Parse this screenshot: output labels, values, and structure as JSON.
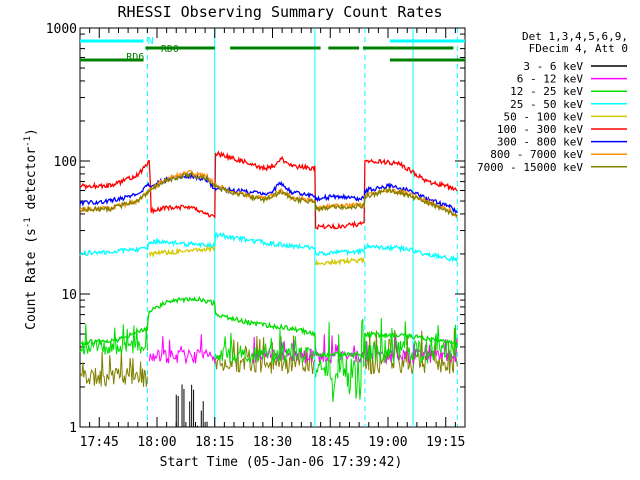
{
  "chart_data": {
    "type": "line",
    "title": "RHESSI Observing Summary Count Rates",
    "xlabel": "Start Time (05-Jan-06 17:39:42)",
    "ylabel_main": "Count Rate (s",
    "ylabel_sup1": "-1",
    "ylabel_mid": " detector",
    "ylabel_sup2": "-1",
    "ylabel_end": ")",
    "y_scale": "log",
    "ylim": [
      1,
      1000
    ],
    "xlim_min": [
      0,
      100
    ],
    "x_ticks": [
      {
        "label": "17:45",
        "t": 5
      },
      {
        "label": "18:00",
        "t": 20
      },
      {
        "label": "18:15",
        "t": 35
      },
      {
        "label": "18:30",
        "t": 50
      },
      {
        "label": "18:45",
        "t": 65
      },
      {
        "label": "19:00",
        "t": 80
      },
      {
        "label": "19:15",
        "t": 95
      }
    ],
    "y_ticks": [
      {
        "label": "1",
        "v": 1
      },
      {
        "label": "10",
        "v": 10
      },
      {
        "label": "100",
        "v": 100
      },
      {
        "label": "1000",
        "v": 1000
      }
    ],
    "header_lines": [
      "Det 1,3,4,5,6,9,",
      "FDecim 4, Att 0"
    ],
    "legend": [
      {
        "label": "3 - 6 keV",
        "color": "#000000"
      },
      {
        "label": "6 - 12 keV",
        "color": "#ff00ff"
      },
      {
        "label": "12 - 25 keV",
        "color": "#00dd00"
      },
      {
        "label": "25 - 50 keV",
        "color": "#00ffff"
      },
      {
        "label": "50 - 100 keV",
        "color": "#d4c800"
      },
      {
        "label": "100 - 300 keV",
        "color": "#ff0000"
      },
      {
        "label": "300 - 800 keV",
        "color": "#0000ff"
      },
      {
        "label": "800 - 7000 keV",
        "color": "#ff8c00"
      },
      {
        "label": "7000 - 15000 keV",
        "color": "#808000"
      }
    ],
    "flag_labels": {
      "n": "N",
      "rd0": "RD0",
      "rd6": "RD6"
    },
    "flags": {
      "n": [
        [
          0,
          16.5
        ],
        [
          80.5,
          100
        ]
      ],
      "rd0": [
        [
          17,
          35
        ],
        [
          39,
          62.5
        ],
        [
          64.5,
          72.5
        ],
        [
          73.5,
          97
        ]
      ],
      "rd6": [
        [
          0,
          16.5
        ],
        [
          80.5,
          100
        ]
      ]
    },
    "night_boundaries": [
      17.5,
      35,
      61,
      74,
      86.5,
      98
    ],
    "dashed_boundaries": [
      17.5,
      74,
      98
    ],
    "series": [
      {
        "name": "100 - 300 keV",
        "color": "#ff0000",
        "points": [
          [
            0,
            65
          ],
          [
            8,
            65
          ],
          [
            15,
            78
          ],
          [
            17.5,
            95
          ],
          [
            18,
            100
          ],
          [
            18.5,
            42
          ],
          [
            23,
            45
          ],
          [
            28,
            45
          ],
          [
            33,
            40
          ],
          [
            35,
            38
          ],
          [
            35.2,
            115
          ],
          [
            42,
            100
          ],
          [
            48,
            88
          ],
          [
            50,
            90
          ],
          [
            52,
            105
          ],
          [
            55,
            92
          ],
          [
            60,
            88
          ],
          [
            61,
            90
          ],
          [
            61.2,
            32
          ],
          [
            66,
            32
          ],
          [
            73.8,
            34
          ],
          [
            74,
            100
          ],
          [
            80,
            98
          ],
          [
            83,
            95
          ],
          [
            90,
            70
          ],
          [
            96,
            64
          ],
          [
            98,
            60
          ]
        ]
      },
      {
        "name": "300 - 800 keV",
        "color": "#0000ff",
        "points": [
          [
            0,
            48
          ],
          [
            8,
            50
          ],
          [
            15,
            56
          ],
          [
            17.5,
            65
          ],
          [
            18,
            65
          ],
          [
            22,
            72
          ],
          [
            28,
            78
          ],
          [
            33,
            72
          ],
          [
            35,
            62
          ],
          [
            40,
            60
          ],
          [
            48,
            57
          ],
          [
            50,
            60
          ],
          [
            52,
            68
          ],
          [
            55,
            58
          ],
          [
            61,
            55
          ],
          [
            61.2,
            52
          ],
          [
            66,
            54
          ],
          [
            73.8,
            52
          ],
          [
            74,
            60
          ],
          [
            80,
            65
          ],
          [
            84,
            62
          ],
          [
            90,
            52
          ],
          [
            96,
            45
          ],
          [
            98,
            42
          ]
        ]
      },
      {
        "name": "800 - 7000 keV",
        "color": "#ff8c00",
        "points": [
          [
            0,
            43
          ],
          [
            8,
            44
          ],
          [
            15,
            50
          ],
          [
            17.5,
            58
          ],
          [
            18,
            60
          ],
          [
            22,
            72
          ],
          [
            28,
            82
          ],
          [
            33,
            76
          ],
          [
            35,
            66
          ],
          [
            40,
            58
          ],
          [
            48,
            52
          ],
          [
            50,
            55
          ],
          [
            52,
            60
          ],
          [
            55,
            53
          ],
          [
            61,
            50
          ],
          [
            61.2,
            44
          ],
          [
            66,
            46
          ],
          [
            73.8,
            47
          ],
          [
            74,
            55
          ],
          [
            80,
            60
          ],
          [
            84,
            58
          ],
          [
            90,
            50
          ],
          [
            96,
            42
          ],
          [
            98,
            39
          ]
        ]
      },
      {
        "name": "7000 - 15000 keV",
        "color": "#808000",
        "points": [
          [
            0,
            43
          ],
          [
            8,
            44
          ],
          [
            15,
            50
          ],
          [
            17.5,
            58
          ],
          [
            18,
            60
          ],
          [
            22,
            70
          ],
          [
            28,
            80
          ],
          [
            33,
            74
          ],
          [
            35,
            65
          ],
          [
            40,
            57
          ],
          [
            48,
            51
          ],
          [
            50,
            54
          ],
          [
            52,
            59
          ],
          [
            55,
            52
          ],
          [
            61,
            49
          ],
          [
            61.2,
            44
          ],
          [
            66,
            45
          ],
          [
            73.8,
            46
          ],
          [
            74,
            54
          ],
          [
            80,
            60
          ],
          [
            84,
            57
          ],
          [
            90,
            49
          ],
          [
            96,
            41
          ],
          [
            98,
            38
          ]
        ]
      },
      {
        "name": "25 - 50 keV",
        "color": "#00ffff",
        "points": [
          [
            0,
            20
          ],
          [
            17.5,
            22
          ],
          [
            18,
            25
          ],
          [
            35,
            23
          ],
          [
            35.2,
            28
          ],
          [
            45,
            25
          ],
          [
            55,
            23
          ],
          [
            61,
            22
          ],
          [
            61.2,
            20
          ],
          [
            73.8,
            21
          ],
          [
            74,
            23
          ],
          [
            84,
            22
          ],
          [
            90,
            20
          ],
          [
            98,
            18
          ]
        ]
      },
      {
        "name": "50 - 100 keV",
        "color": "#d4c800",
        "points": [
          [
            18,
            20
          ],
          [
            35,
            22
          ]
        ]
      },
      {
        "name": "50 - 100 keV ",
        "color": "#d4c800",
        "points": [
          [
            61.2,
            17
          ],
          [
            73.8,
            18
          ]
        ]
      },
      {
        "name": "12 - 25 keV",
        "color": "#00dd00",
        "points": [
          [
            0,
            4.3
          ],
          [
            10,
            4.5
          ],
          [
            17.5,
            5.5
          ],
          [
            18,
            7.5
          ],
          [
            24,
            9
          ],
          [
            30,
            9.2
          ],
          [
            35,
            8.5
          ],
          [
            35.2,
            7
          ],
          [
            45,
            6
          ],
          [
            55,
            5.5
          ],
          [
            61,
            5
          ],
          [
            61.2,
            3.5
          ],
          [
            73.8,
            3.5
          ],
          [
            74,
            5
          ],
          [
            86,
            4.8
          ],
          [
            98,
            4.2
          ]
        ]
      }
    ]
  }
}
